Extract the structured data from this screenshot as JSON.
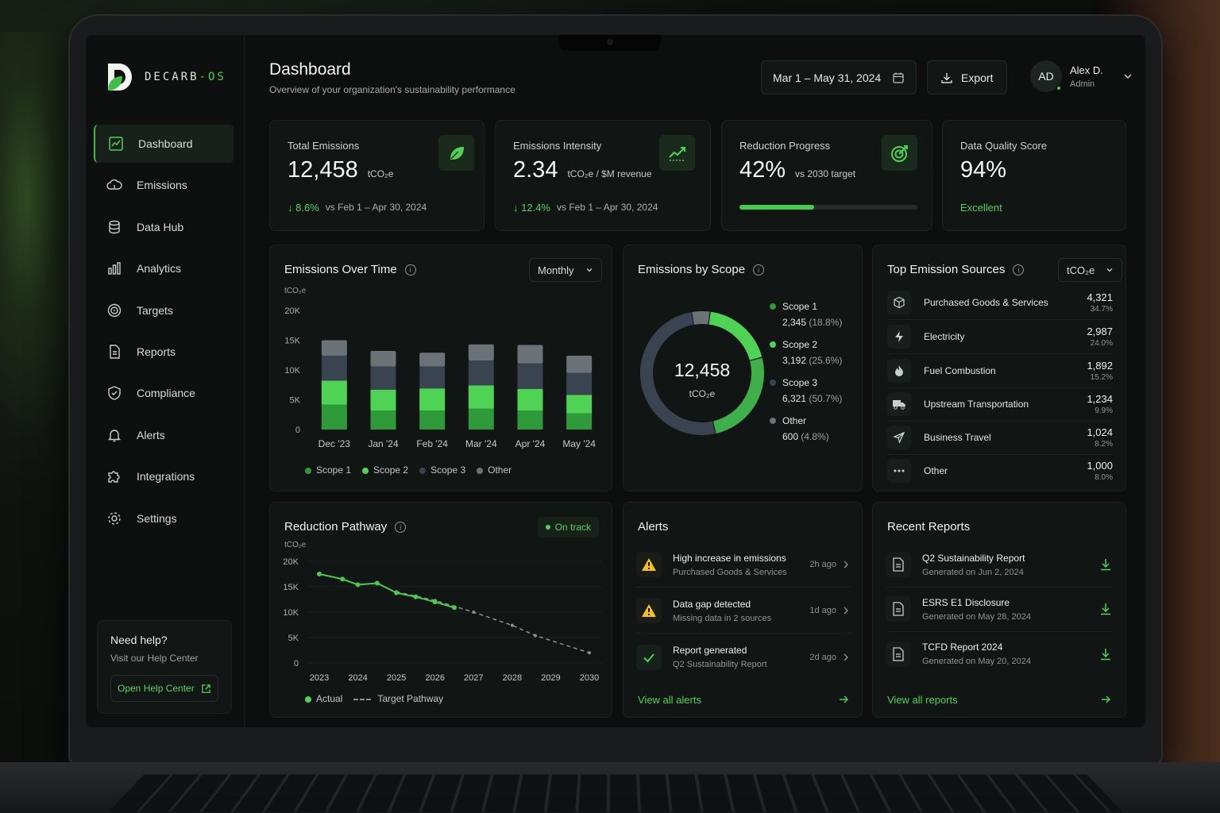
{
  "app": {
    "logo_text_1": "DECARB",
    "logo_text_2": "-OS"
  },
  "sidebar": {
    "items": [
      {
        "label": "Dashboard"
      },
      {
        "label": "Emissions"
      },
      {
        "label": "Data Hub"
      },
      {
        "label": "Analytics"
      },
      {
        "label": "Targets"
      },
      {
        "label": "Reports"
      },
      {
        "label": "Compliance"
      },
      {
        "label": "Alerts"
      },
      {
        "label": "Integrations"
      },
      {
        "label": "Settings"
      }
    ],
    "help": {
      "title": "Need help?",
      "subtitle": "Visit our Help Center",
      "button": "Open Help Center"
    }
  },
  "header": {
    "title": "Dashboard",
    "subtitle": "Overview of your organization's sustainability performance",
    "date_range": "Mar 1 – May 31, 2024",
    "export_label": "Export",
    "user_initials": "AD",
    "user_name": "Alex D.",
    "user_role": "Admin"
  },
  "kpis": {
    "total": {
      "label": "Total Emissions",
      "value": "12,458",
      "unit": "tCO₂e",
      "delta": "8.6%",
      "compare": "vs Feb 1 – Apr 30, 2024"
    },
    "intensity": {
      "label": "Emissions Intensity",
      "value": "2.34",
      "unit": "tCO₂e / $M revenue",
      "delta": "12.4%",
      "compare": "vs Feb 1 – Apr 30, 2024"
    },
    "reduction": {
      "label": "Reduction Progress",
      "value": "42%",
      "unit": "vs 2030 target",
      "progress": 0.42
    },
    "quality": {
      "label": "Data Quality Score",
      "value": "94%",
      "status": "Excellent"
    }
  },
  "emissions_over_time": {
    "title": "Emissions Over Time",
    "period": "Monthly",
    "unit": "tCO₂e",
    "legend": [
      "Scope 1",
      "Scope 2",
      "Scope 3",
      "Other"
    ]
  },
  "emissions_by_scope": {
    "title": "Emissions by Scope",
    "center_value": "12,458",
    "center_unit": "tCO₂e",
    "scopes": [
      {
        "name": "Scope 1",
        "value": "2,345",
        "pct": "(18.8%)"
      },
      {
        "name": "Scope 2",
        "value": "3,192",
        "pct": "(25.6%)"
      },
      {
        "name": "Scope 3",
        "value": "6,321",
        "pct": "(50.7%)"
      },
      {
        "name": "Other",
        "value": "600",
        "pct": "(4.8%)"
      }
    ]
  },
  "top_sources": {
    "title": "Top Emission Sources",
    "unit_select": "tCO₂e",
    "rows": [
      {
        "name": "Purchased Goods & Services",
        "value": "4,321",
        "pct": "34.7%"
      },
      {
        "name": "Electricity",
        "value": "2,987",
        "pct": "24.0%"
      },
      {
        "name": "Fuel Combustion",
        "value": "1,892",
        "pct": "15.2%"
      },
      {
        "name": "Upstream Transportation",
        "value": "1,234",
        "pct": "9.9%"
      },
      {
        "name": "Business Travel",
        "value": "1,024",
        "pct": "8.2%"
      },
      {
        "name": "Other",
        "value": "1,000",
        "pct": "8.0%"
      }
    ]
  },
  "reduction_pathway": {
    "title": "Reduction Pathway",
    "status": "On track",
    "unit": "tCO₂e",
    "legend_actual": "Actual",
    "legend_target": "Target Pathway"
  },
  "alerts": {
    "title": "Alerts",
    "items": [
      {
        "title": "High increase in emissions",
        "sub": "Purchased Goods & Services",
        "time": "2h ago"
      },
      {
        "title": "Data gap detected",
        "sub": "Missing data in 2 sources",
        "time": "1d ago"
      },
      {
        "title": "Report generated",
        "sub": "Q2 Sustainability Report",
        "time": "2d ago"
      }
    ],
    "view_all": "View all alerts"
  },
  "reports": {
    "title": "Recent Reports",
    "items": [
      {
        "title": "Q2 Sustainability Report",
        "sub": "Generated on Jun 2, 2024"
      },
      {
        "title": "ESRS E1 Disclosure",
        "sub": "Generated on May 28, 2024"
      },
      {
        "title": "TCFD Report 2024",
        "sub": "Generated on May 20, 2024"
      }
    ],
    "view_all": "View all reports"
  },
  "colors": {
    "accent": "#48cc4e",
    "scope1": "#2f9a3a",
    "scope2": "#4fd355",
    "scope3": "#3a4450",
    "other": "#6b7278"
  },
  "chart_data": [
    {
      "type": "bar",
      "title": "Emissions Over Time",
      "ylabel": "tCO₂e",
      "categories": [
        "Dec '23",
        "Jan '24",
        "Feb '24",
        "Mar '24",
        "Apr '24",
        "May '24"
      ],
      "yticks": [
        "0",
        "5K",
        "10K",
        "15K",
        "20K"
      ],
      "ylim": [
        0,
        20000
      ],
      "series": [
        {
          "name": "Scope 1",
          "values": [
            4200,
            3200,
            3200,
            3500,
            3200,
            2700
          ]
        },
        {
          "name": "Scope 2",
          "values": [
            4000,
            3500,
            3700,
            3900,
            3600,
            3100
          ]
        },
        {
          "name": "Scope 3",
          "values": [
            4200,
            3900,
            3700,
            4200,
            4300,
            3700
          ]
        },
        {
          "name": "Other",
          "values": [
            2600,
            2600,
            2300,
            2700,
            3100,
            2900
          ]
        }
      ]
    },
    {
      "type": "pie",
      "title": "Emissions by Scope",
      "labels": [
        "Scope 1",
        "Scope 2",
        "Scope 3",
        "Other"
      ],
      "values": [
        2345,
        3192,
        6321,
        600
      ]
    },
    {
      "type": "line",
      "title": "Reduction Pathway",
      "ylabel": "tCO₂e",
      "x_ticks": [
        "2023",
        "2024",
        "2025",
        "2026",
        "2027",
        "2028",
        "2029",
        "2030"
      ],
      "yticks": [
        "0",
        "5K",
        "10K",
        "15K",
        "20K"
      ],
      "ylim": [
        0,
        20000
      ],
      "series": [
        {
          "name": "Actual",
          "points": [
            [
              2023.0,
              17500
            ],
            [
              2023.6,
              16500
            ],
            [
              2024.0,
              15400
            ],
            [
              2024.5,
              15700
            ],
            [
              2025.0,
              13800
            ],
            [
              2025.5,
              13000
            ],
            [
              2026.0,
              12000
            ],
            [
              2026.5,
              10900
            ]
          ]
        },
        {
          "name": "Target Pathway",
          "points": [
            [
              2025.0,
              14000
            ],
            [
              2026.0,
              12300
            ],
            [
              2027.0,
              10000
            ],
            [
              2028.0,
              7400
            ],
            [
              2028.6,
              5400
            ],
            [
              2030.0,
              2000
            ]
          ]
        }
      ]
    }
  ]
}
